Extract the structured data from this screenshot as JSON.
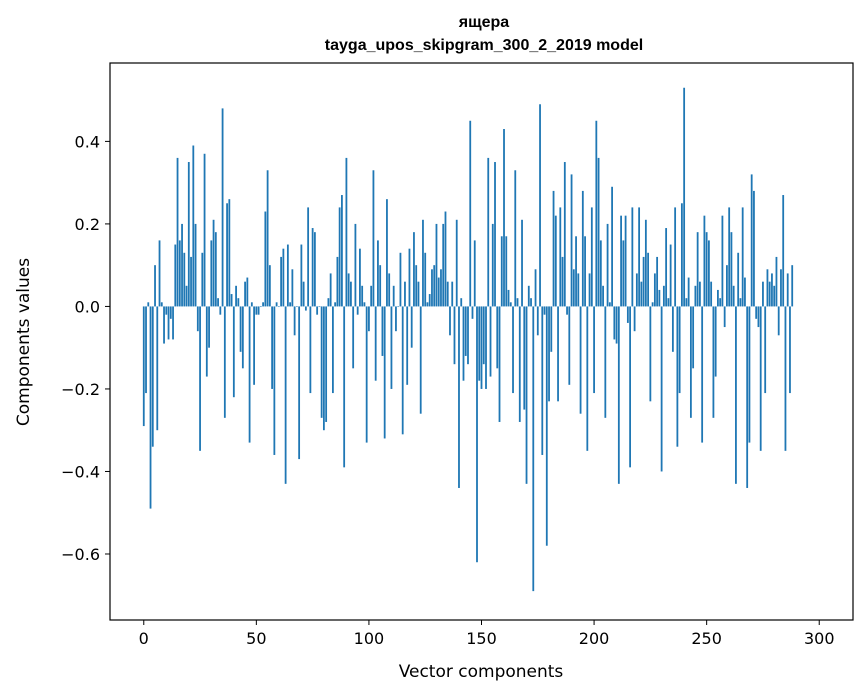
{
  "chart_data": {
    "type": "bar",
    "title": "ящера",
    "subtitle": "tayga_upos_skipgram_300_2_2019 model",
    "xlabel": "Vector components",
    "ylabel": "Components values",
    "xlim": [
      -15,
      315
    ],
    "ylim": [
      -0.76,
      0.59
    ],
    "xticks": [
      0,
      50,
      100,
      150,
      200,
      250,
      300
    ],
    "yticks": [
      -0.6,
      -0.4,
      -0.2,
      0.0,
      0.2,
      0.4
    ],
    "ytick_labels": [
      "−0.6",
      "−0.4",
      "−0.2",
      "0.0",
      "0.2",
      "0.4"
    ],
    "grid": false,
    "bar_color": "#1f77b4",
    "x_start": 0,
    "values": [
      -0.29,
      -0.21,
      0.01,
      -0.49,
      -0.34,
      0.1,
      -0.3,
      0.16,
      0.01,
      -0.09,
      -0.02,
      -0.08,
      -0.03,
      -0.08,
      0.15,
      0.36,
      0.16,
      0.2,
      0.13,
      0.05,
      0.35,
      0.12,
      0.39,
      0.2,
      -0.06,
      -0.35,
      0.13,
      0.37,
      -0.17,
      -0.1,
      0.16,
      0.21,
      0.18,
      0.02,
      -0.02,
      0.48,
      -0.27,
      0.25,
      0.26,
      0.03,
      -0.22,
      0.05,
      0.02,
      -0.11,
      -0.15,
      0.06,
      0.07,
      -0.33,
      0.01,
      -0.19,
      -0.02,
      -0.02,
      0.0,
      0.01,
      0.23,
      0.33,
      0.1,
      -0.2,
      -0.36,
      0.01,
      0.0,
      0.12,
      0.14,
      -0.43,
      0.15,
      0.01,
      0.09,
      -0.07,
      0.0,
      -0.37,
      0.15,
      0.06,
      -0.01,
      0.24,
      -0.21,
      0.19,
      0.18,
      -0.02,
      0.0,
      -0.27,
      -0.3,
      -0.28,
      0.02,
      0.08,
      -0.21,
      0.01,
      0.12,
      0.24,
      0.27,
      -0.39,
      0.36,
      0.08,
      0.06,
      -0.15,
      0.2,
      -0.02,
      0.14,
      0.05,
      0.01,
      -0.33,
      -0.06,
      0.05,
      0.33,
      -0.18,
      0.16,
      0.1,
      -0.12,
      -0.32,
      0.26,
      0.08,
      -0.2,
      0.05,
      -0.06,
      0.0,
      0.13,
      -0.31,
      0.06,
      -0.19,
      0.14,
      -0.1,
      0.18,
      0.1,
      0.06,
      -0.26,
      0.21,
      0.13,
      0.01,
      0.03,
      0.09,
      0.1,
      0.2,
      0.07,
      0.09,
      0.2,
      0.23,
      0.06,
      -0.07,
      0.06,
      -0.14,
      0.21,
      -0.44,
      0.02,
      -0.18,
      -0.12,
      -0.14,
      0.45,
      -0.03,
      0.16,
      -0.62,
      -0.18,
      -0.2,
      -0.14,
      -0.2,
      0.36,
      -0.17,
      0.2,
      0.35,
      -0.15,
      -0.28,
      0.17,
      0.43,
      0.17,
      0.04,
      0.01,
      -0.21,
      0.33,
      0.02,
      -0.28,
      0.21,
      -0.25,
      -0.43,
      0.05,
      0.02,
      -0.69,
      0.09,
      -0.07,
      0.49,
      -0.36,
      -0.02,
      -0.58,
      -0.23,
      -0.11,
      0.28,
      0.22,
      -0.23,
      0.24,
      0.12,
      0.35,
      -0.02,
      -0.19,
      0.32,
      0.09,
      0.17,
      0.08,
      -0.26,
      0.28,
      0.17,
      -0.35,
      0.08,
      0.24,
      -0.21,
      0.45,
      0.36,
      0.16,
      0.05,
      -0.27,
      0.2,
      0.01,
      0.29,
      -0.08,
      -0.09,
      -0.43,
      0.22,
      0.16,
      0.22,
      -0.04,
      -0.39,
      0.24,
      -0.06,
      0.08,
      0.24,
      0.06,
      0.12,
      0.21,
      0.13,
      -0.23,
      0.01,
      0.08,
      0.12,
      0.04,
      -0.4,
      0.05,
      0.19,
      0.02,
      0.15,
      -0.11,
      0.24,
      -0.34,
      -0.21,
      0.25,
      0.53,
      0.02,
      0.07,
      -0.27,
      -0.15,
      0.05,
      0.18,
      0.06,
      -0.33,
      0.22,
      0.18,
      0.16,
      0.06,
      -0.27,
      -0.17,
      0.04,
      0.02,
      0.22,
      -0.05,
      0.1,
      0.24,
      0.18,
      0.05,
      -0.43,
      0.13,
      0.02,
      0.24,
      0.07,
      -0.44,
      -0.33,
      0.32,
      0.28,
      -0.03,
      -0.05,
      -0.35,
      0.06,
      -0.21,
      0.09,
      0.06,
      0.08,
      0.05,
      0.12,
      -0.07,
      0.09,
      0.27,
      -0.35,
      0.08,
      -0.21,
      0.1
    ]
  }
}
